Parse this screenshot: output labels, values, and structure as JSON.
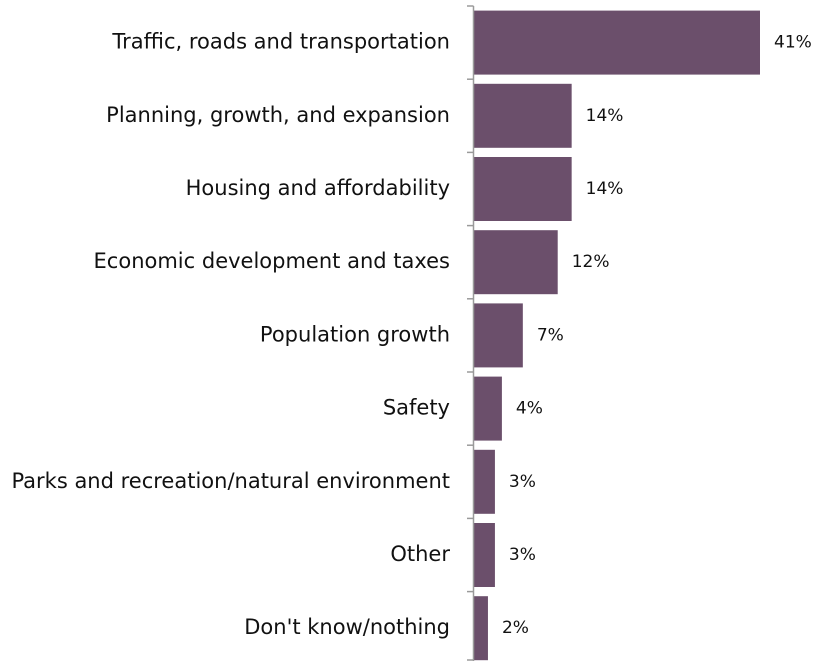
{
  "chart_data": {
    "type": "bar",
    "orientation": "horizontal",
    "title": "",
    "xlabel": "",
    "ylabel": "",
    "categories": [
      "Traffic, roads and transportation",
      "Planning, growth, and expansion",
      "Housing and affordability",
      "Economic development and taxes",
      "Population growth",
      "Safety",
      "Parks and recreation/natural environment",
      "Other",
      "Don't know/nothing"
    ],
    "values": [
      41,
      14,
      14,
      12,
      7,
      4,
      3,
      3,
      2
    ],
    "value_labels": [
      "41%",
      "14%",
      "14%",
      "12%",
      "7%",
      "4%",
      "3%",
      "3%",
      "2%"
    ],
    "xlim": [
      0,
      41
    ],
    "grid": false,
    "legend": "none",
    "colors": {
      "bar": "#6b4f6b",
      "axis": "#9a9a9a",
      "text": "#111111"
    }
  }
}
